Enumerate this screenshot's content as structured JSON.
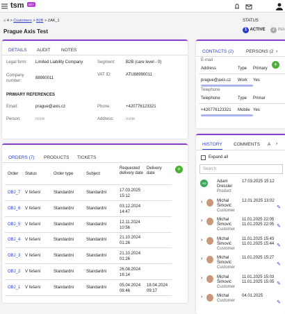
{
  "header": {
    "logo": "tsm",
    "badge": "BET"
  },
  "breadcrumb": [
    "4",
    "Customers",
    "B2B",
    "ZAK_1"
  ],
  "title": "Prague Axis Test",
  "status": {
    "label": "STATUS",
    "steps": [
      {
        "num": "1",
        "label": "ACTIVE"
      },
      {
        "num": "2",
        "label": "INA"
      }
    ]
  },
  "details": {
    "tabs": [
      "DETAILS",
      "AUDIT",
      "NOTES"
    ],
    "fields": [
      {
        "label": "Legal form:",
        "value": "Limited Liability Company"
      },
      {
        "label": "Segment:",
        "value": "B2B (care level - 0)"
      },
      {
        "label": "Company number:",
        "value": "88990011"
      },
      {
        "label": "VAT ID:",
        "value": "ATU88990011"
      }
    ],
    "section": "PRIMARY REFERENCES",
    "references": [
      {
        "label": "Email:",
        "value": "prague@axis.cz"
      },
      {
        "label": "Phone:",
        "value": "+420776123321"
      },
      {
        "label": "Person:",
        "value": "none"
      },
      {
        "label": "Address:",
        "value": "none"
      }
    ]
  },
  "orders": {
    "tabs": [
      "ORDERS (7)",
      "PRODUCTS",
      "TICKETS"
    ],
    "columns": [
      "Order",
      "Status",
      "Order type",
      "Subject",
      "Requested delivery date",
      "Delivery date"
    ],
    "rows": [
      [
        "OBJ_7",
        "V řešení",
        "Standardní",
        "Standardní",
        "17.03.2025 15:12"
      ],
      [
        "OBJ_6",
        "V řešení",
        "Standardní",
        "Standardní",
        "03.12.2024 14:47"
      ],
      [
        "OBJ_5",
        "V řešení",
        "Standardní",
        "Standardní",
        "12.11.2024 10:56"
      ],
      [
        "OBJ_4",
        "V řešení",
        "Standardní",
        "Standardní",
        "21.10.2024 01:26"
      ],
      [
        "OBJ_3",
        "V řešení",
        "Standardní",
        "Standardní",
        "21.10.2024 01:26"
      ],
      [
        "OBJ_2",
        "V řešení",
        "Standardní",
        "Standardní",
        "26.08.2024 16:14"
      ],
      [
        "OBJ_1",
        "V řešení",
        "Standardní",
        "Standardní",
        "05.04.2024 08:46",
        "18.04.2024 09:17"
      ]
    ]
  },
  "contacts": {
    "tabs": [
      "CONTACTS (2)",
      "PERSONS (2"
    ],
    "email": {
      "title": "E-mail",
      "columns": [
        "Address",
        "Type",
        "Primary"
      ],
      "row": [
        "prague@axis.cz",
        "Work",
        "Yes"
      ]
    },
    "phone": {
      "title": "Telephone",
      "columns": [
        "Telephone",
        "Type",
        "Primar"
      ],
      "row": [
        "+420776123321",
        "Mobile",
        "Yes"
      ]
    }
  },
  "history": {
    "tabs": [
      "HISTORY",
      "COMMENTS",
      "A"
    ],
    "expand": "Expand all",
    "search": "Search",
    "entries": [
      {
        "initials": "AD",
        "name": "Adam Dressler",
        "role": "Product",
        "dates": [
          "17.03.2025 15:12"
        ]
      },
      {
        "name": "Michal Šimović",
        "role": "Customer",
        "dates": [
          "12.01.2025 13:02"
        ]
      },
      {
        "name": "Michal Šimović",
        "role": "Customer",
        "dates": [
          "11.01.2025 22:05",
          "11.01.2025 22:05"
        ]
      },
      {
        "name": "Michal Šimović",
        "role": "Customer",
        "dates": [
          "11.01.2025 15:43",
          "11.01.2025 15:44"
        ]
      },
      {
        "name": "Michal Šimović",
        "role": "Customer",
        "dates": [
          "11.01.2025 15:27"
        ]
      },
      {
        "name": "Michal Šimović",
        "role": "Customer",
        "dates": [
          "11.01.2025 15:03",
          "11.01.2025 15:05"
        ]
      },
      {
        "name": "Michal",
        "role": "Customer",
        "dates": [
          "04.01.2025"
        ]
      }
    ]
  }
}
